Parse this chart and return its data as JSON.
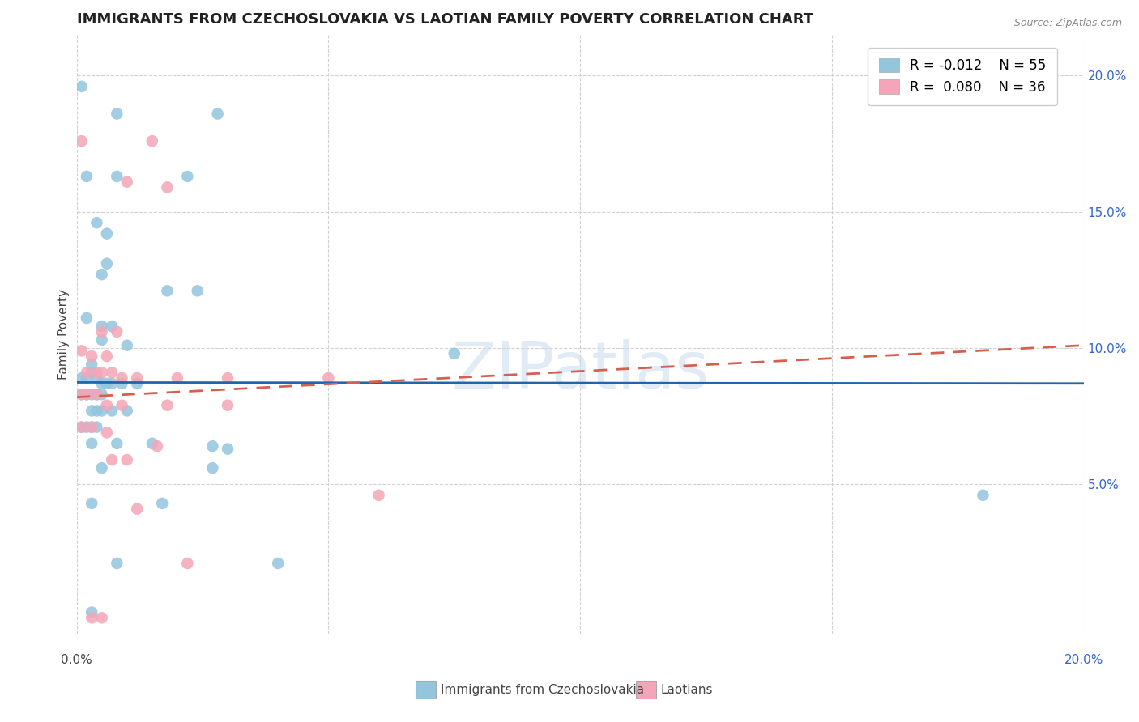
{
  "title": "IMMIGRANTS FROM CZECHOSLOVAKIA VS LAOTIAN FAMILY POVERTY CORRELATION CHART",
  "source": "Source: ZipAtlas.com",
  "ylabel": "Family Poverty",
  "xlim": [
    0.0,
    0.2
  ],
  "ylim": [
    -0.005,
    0.215
  ],
  "yticks": [
    0.05,
    0.1,
    0.15,
    0.2
  ],
  "ytick_labels": [
    "5.0%",
    "10.0%",
    "15.0%",
    "20.0%"
  ],
  "color_blue": "#92C5DE",
  "color_pink": "#F4A6B8",
  "color_line_blue": "#2166AC",
  "color_line_pink": "#D6604D",
  "watermark": "ZIPatlas",
  "blue_line_intercept": 0.0874,
  "blue_line_slope": -0.002,
  "pink_line_intercept": 0.082,
  "pink_line_slope": 0.095,
  "blue_points": [
    [
      0.001,
      0.196
    ],
    [
      0.008,
      0.186
    ],
    [
      0.028,
      0.186
    ],
    [
      0.002,
      0.163
    ],
    [
      0.008,
      0.163
    ],
    [
      0.022,
      0.163
    ],
    [
      0.004,
      0.146
    ],
    [
      0.006,
      0.142
    ],
    [
      0.006,
      0.131
    ],
    [
      0.005,
      0.127
    ],
    [
      0.018,
      0.121
    ],
    [
      0.024,
      0.121
    ],
    [
      0.002,
      0.111
    ],
    [
      0.005,
      0.108
    ],
    [
      0.007,
      0.108
    ],
    [
      0.005,
      0.103
    ],
    [
      0.01,
      0.101
    ],
    [
      0.075,
      0.098
    ],
    [
      0.003,
      0.094
    ],
    [
      0.003,
      0.091
    ],
    [
      0.001,
      0.089
    ],
    [
      0.002,
      0.089
    ],
    [
      0.004,
      0.089
    ],
    [
      0.005,
      0.087
    ],
    [
      0.006,
      0.087
    ],
    [
      0.007,
      0.087
    ],
    [
      0.009,
      0.087
    ],
    [
      0.012,
      0.087
    ],
    [
      0.001,
      0.083
    ],
    [
      0.002,
      0.083
    ],
    [
      0.003,
      0.083
    ],
    [
      0.004,
      0.083
    ],
    [
      0.005,
      0.083
    ],
    [
      0.003,
      0.077
    ],
    [
      0.004,
      0.077
    ],
    [
      0.005,
      0.077
    ],
    [
      0.007,
      0.077
    ],
    [
      0.01,
      0.077
    ],
    [
      0.001,
      0.071
    ],
    [
      0.002,
      0.071
    ],
    [
      0.003,
      0.071
    ],
    [
      0.004,
      0.071
    ],
    [
      0.003,
      0.065
    ],
    [
      0.008,
      0.065
    ],
    [
      0.015,
      0.065
    ],
    [
      0.027,
      0.064
    ],
    [
      0.03,
      0.063
    ],
    [
      0.005,
      0.056
    ],
    [
      0.027,
      0.056
    ],
    [
      0.003,
      0.043
    ],
    [
      0.017,
      0.043
    ],
    [
      0.18,
      0.046
    ],
    [
      0.04,
      0.021
    ],
    [
      0.008,
      0.021
    ],
    [
      0.003,
      0.003
    ]
  ],
  "pink_points": [
    [
      0.001,
      0.176
    ],
    [
      0.015,
      0.176
    ],
    [
      0.01,
      0.161
    ],
    [
      0.018,
      0.159
    ],
    [
      0.005,
      0.106
    ],
    [
      0.008,
      0.106
    ],
    [
      0.001,
      0.099
    ],
    [
      0.003,
      0.097
    ],
    [
      0.006,
      0.097
    ],
    [
      0.002,
      0.091
    ],
    [
      0.004,
      0.091
    ],
    [
      0.005,
      0.091
    ],
    [
      0.007,
      0.091
    ],
    [
      0.009,
      0.089
    ],
    [
      0.012,
      0.089
    ],
    [
      0.02,
      0.089
    ],
    [
      0.03,
      0.089
    ],
    [
      0.05,
      0.089
    ],
    [
      0.001,
      0.083
    ],
    [
      0.002,
      0.083
    ],
    [
      0.004,
      0.083
    ],
    [
      0.006,
      0.079
    ],
    [
      0.009,
      0.079
    ],
    [
      0.018,
      0.079
    ],
    [
      0.03,
      0.079
    ],
    [
      0.001,
      0.071
    ],
    [
      0.003,
      0.071
    ],
    [
      0.006,
      0.069
    ],
    [
      0.016,
      0.064
    ],
    [
      0.007,
      0.059
    ],
    [
      0.01,
      0.059
    ],
    [
      0.06,
      0.046
    ],
    [
      0.012,
      0.041
    ],
    [
      0.022,
      0.021
    ],
    [
      0.003,
      0.001
    ],
    [
      0.005,
      0.001
    ]
  ]
}
